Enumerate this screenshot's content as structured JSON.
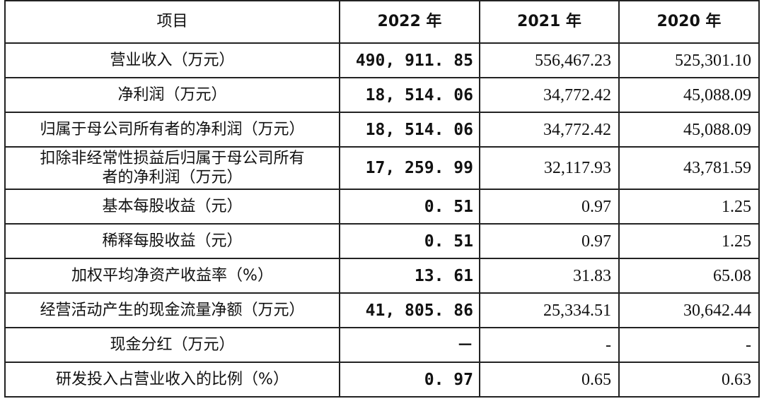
{
  "header": {
    "item": "项目",
    "y2022": "2022 年",
    "y2021": "2021 年",
    "y2020": "2020 年"
  },
  "rows": [
    {
      "label": "营业收入（万元）",
      "v2022": "490, 911. 85",
      "v2021": "556,467.23",
      "v2020": "525,301.10"
    },
    {
      "label": "净利润（万元）",
      "v2022": "18, 514. 06",
      "v2021": "34,772.42",
      "v2020": "45,088.09"
    },
    {
      "label": "归属于母公司所有者的净利润（万元）",
      "v2022": "18, 514. 06",
      "v2021": "34,772.42",
      "v2020": "45,088.09"
    },
    {
      "label_line1": "扣除非经常性损益后归属于母公司所有",
      "label_line2": "者的净利润（万元）",
      "v2022": "17, 259. 99",
      "v2021": "32,117.93",
      "v2020": "43,781.59"
    },
    {
      "label": "基本每股收益（元）",
      "v2022": "0. 51",
      "v2021": "0.97",
      "v2020": "1.25"
    },
    {
      "label": "稀释每股收益（元）",
      "v2022": "0. 51",
      "v2021": "0.97",
      "v2020": "1.25"
    },
    {
      "label": "加权平均净资产收益率（%）",
      "v2022": "13. 61",
      "v2021": "31.83",
      "v2020": "65.08"
    },
    {
      "label": "经营活动产生的现金流量净额（万元）",
      "v2022": "41, 805. 86",
      "v2021": "25,334.51",
      "v2020": "30,642.44"
    },
    {
      "label": "现金分红（万元）",
      "v2022": "－",
      "v2021": "-",
      "v2020": "-"
    },
    {
      "label": "研发投入占营业收入的比例（%）",
      "v2022": "0. 97",
      "v2021": "0.65",
      "v2020": "0.63"
    }
  ]
}
